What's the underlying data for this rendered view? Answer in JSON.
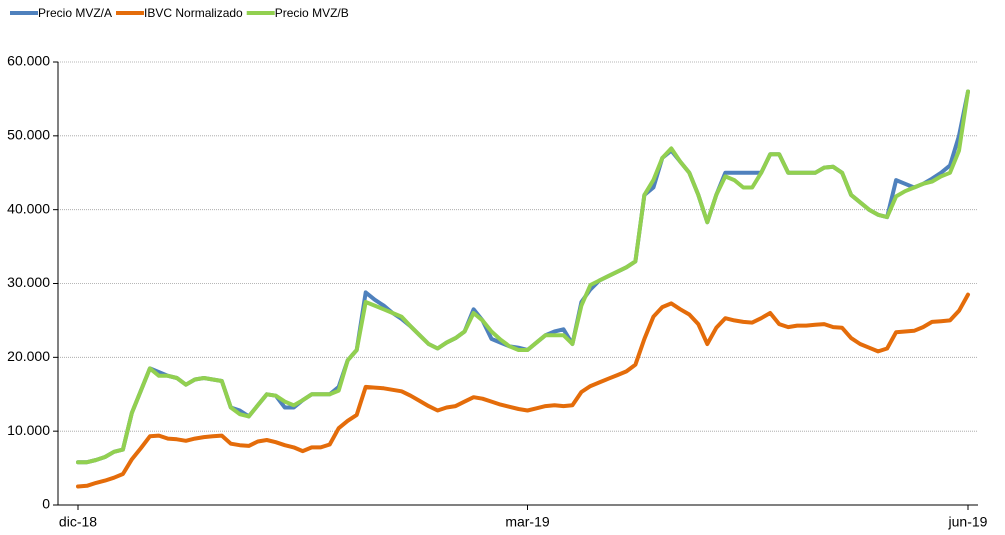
{
  "chart_data": {
    "type": "line",
    "categories": [
      "dic-18",
      null,
      null,
      null,
      null,
      null,
      null,
      null,
      null,
      null,
      null,
      null,
      null,
      null,
      null,
      null,
      null,
      null,
      null,
      null,
      null,
      null,
      null,
      null,
      null,
      null,
      null,
      null,
      null,
      null,
      null,
      null,
      null,
      null,
      null,
      null,
      null,
      null,
      null,
      null,
      null,
      null,
      null,
      null,
      null,
      null,
      null,
      null,
      null,
      null,
      "mar-19",
      null,
      null,
      null,
      null,
      null,
      null,
      null,
      null,
      null,
      null,
      null,
      null,
      null,
      null,
      null,
      null,
      null,
      null,
      null,
      null,
      null,
      null,
      null,
      null,
      null,
      null,
      null,
      null,
      null,
      null,
      null,
      null,
      null,
      null,
      null,
      null,
      null,
      null,
      null,
      null,
      null,
      null,
      null,
      null,
      null,
      null,
      null,
      null,
      "jun-19"
    ],
    "series": [
      {
        "name": "Precio MVZ/A",
        "color": "#4f81bd",
        "values": [
          5800,
          5800,
          6100,
          6500,
          7200,
          7500,
          12500,
          15500,
          18500,
          18000,
          17500,
          17200,
          16300,
          17000,
          17200,
          17000,
          16800,
          13200,
          12800,
          12000,
          13500,
          15000,
          14800,
          13200,
          13200,
          14200,
          15000,
          15000,
          15000,
          16000,
          19600,
          21000,
          28800,
          27800,
          27000,
          26000,
          25200,
          24200,
          23000,
          21800,
          21200,
          22000,
          22600,
          23500,
          26500,
          25000,
          22500,
          22000,
          21500,
          21300,
          21000,
          22000,
          23000,
          23500,
          23800,
          21800,
          27500,
          29200,
          30400,
          31000,
          31600,
          32200,
          33000,
          42000,
          43000,
          47000,
          48000,
          46500,
          45000,
          42000,
          38300,
          42000,
          45000,
          45000,
          45000,
          45000,
          45000,
          47500,
          47500,
          45000,
          45000,
          45000,
          45000,
          45700,
          45800,
          45000,
          42000,
          41000,
          40000,
          39300,
          39000,
          44000,
          43500,
          43000,
          43500,
          44200,
          45000,
          46000,
          50000,
          56000
        ]
      },
      {
        "name": "IBVC Normalizado",
        "color": "#e46c0a",
        "values": [
          2500,
          2600,
          3000,
          3300,
          3700,
          4200,
          6200,
          7700,
          9300,
          9400,
          9000,
          8900,
          8700,
          9000,
          9200,
          9300,
          9400,
          8300,
          8100,
          8000,
          8600,
          8800,
          8500,
          8100,
          7800,
          7300,
          7800,
          7800,
          8200,
          10400,
          11400,
          12200,
          16000,
          15900,
          15800,
          15600,
          15400,
          14800,
          14100,
          13400,
          12800,
          13200,
          13400,
          14000,
          14600,
          14400,
          14000,
          13600,
          13300,
          13000,
          12800,
          13100,
          13400,
          13500,
          13400,
          13500,
          15300,
          16100,
          16600,
          17100,
          17600,
          18100,
          19000,
          22500,
          25500,
          26800,
          27300,
          26500,
          25800,
          24500,
          21800,
          24000,
          25300,
          25000,
          24800,
          24700,
          25300,
          26000,
          24500,
          24100,
          24300,
          24300,
          24400,
          24500,
          24100,
          24000,
          22600,
          21800,
          21300,
          20800,
          21200,
          23400,
          23500,
          23600,
          24100,
          24800,
          24900,
          25000,
          26300,
          28500
        ]
      },
      {
        "name": "Precio MVZ/B",
        "color": "#92d050",
        "values": [
          5800,
          5800,
          6100,
          6500,
          7200,
          7500,
          12500,
          15500,
          18500,
          17500,
          17500,
          17200,
          16300,
          17000,
          17200,
          17000,
          16800,
          13200,
          12300,
          12000,
          13500,
          15000,
          14800,
          14000,
          13500,
          14200,
          15000,
          15000,
          15000,
          15500,
          19600,
          21000,
          27500,
          27000,
          26500,
          26000,
          25500,
          24200,
          23000,
          21800,
          21200,
          22000,
          22600,
          23500,
          26000,
          25000,
          23500,
          22400,
          21500,
          21000,
          21000,
          22000,
          23000,
          23000,
          23000,
          21800,
          27000,
          29800,
          30400,
          31000,
          31600,
          32200,
          33000,
          42000,
          44000,
          47000,
          48300,
          46500,
          45000,
          42000,
          38300,
          42000,
          44500,
          44000,
          43000,
          43000,
          45000,
          47500,
          47500,
          45000,
          45000,
          45000,
          45000,
          45700,
          45800,
          45000,
          42000,
          41000,
          40000,
          39300,
          39000,
          41800,
          42500,
          43000,
          43500,
          43800,
          44500,
          45000,
          48000,
          56000
        ]
      }
    ],
    "ylim": [
      0,
      60000
    ],
    "yticks": [
      0,
      {
        "value": 10000,
        "label": "10.000"
      },
      {
        "value": 20000,
        "label": "20.000"
      },
      {
        "value": 30000,
        "label": "30.000"
      },
      {
        "value": 40000,
        "label": "40.000"
      },
      {
        "value": 50000,
        "label": "50.000"
      },
      {
        "value": 60000,
        "label": "60.000"
      }
    ],
    "grid": true,
    "legend": "top-left"
  }
}
